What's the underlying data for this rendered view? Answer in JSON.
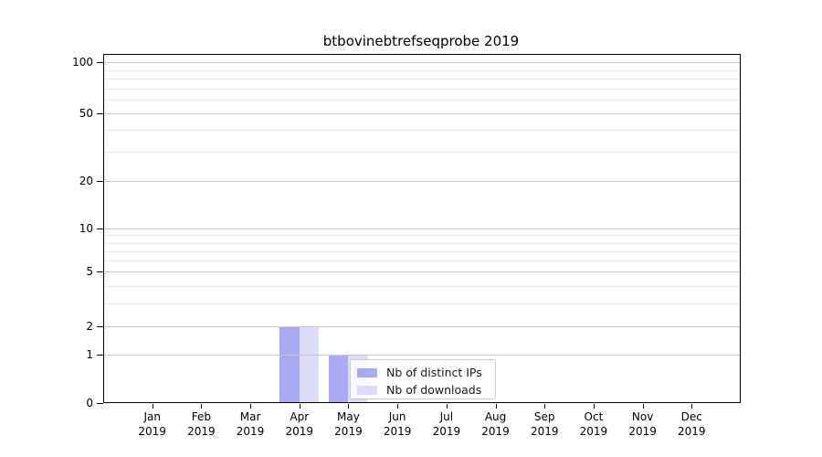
{
  "title": "btbovinebtrefseqprobe 2019",
  "chart_data": {
    "type": "bar",
    "title": "btbovinebtrefseqprobe 2019",
    "categories": [
      "Jan",
      "Feb",
      "Mar",
      "Apr",
      "May",
      "Jun",
      "Jul",
      "Aug",
      "Sep",
      "Oct",
      "Nov",
      "Dec"
    ],
    "category_year": "2019",
    "series": [
      {
        "name": "Nb of distinct IPs",
        "color": "#aaaaf2",
        "values": [
          0,
          0,
          0,
          2,
          1,
          0,
          0,
          0,
          0,
          0,
          0,
          0
        ]
      },
      {
        "name": "Nb of downloads",
        "color": "#dcdcf8",
        "values": [
          0,
          0,
          0,
          2,
          1,
          0,
          0,
          0,
          0,
          0,
          0,
          0
        ]
      }
    ],
    "y_scale": "log1p",
    "ylim": [
      0,
      110
    ],
    "y_major_ticks": [
      0,
      1,
      2,
      5,
      10,
      20,
      50,
      100
    ],
    "y_minor_ticks": [
      3,
      4,
      6,
      7,
      8,
      9,
      30,
      40,
      60,
      70,
      80,
      90
    ],
    "grid": "horizontal-major-and-minor",
    "legend_position": "lower-center-inside",
    "colors": {
      "grid_major": "#c9c9c9",
      "grid_minor": "#eaeaea",
      "axis": "#000000",
      "legend_border": "#cccccc",
      "background": "#ffffff"
    }
  }
}
